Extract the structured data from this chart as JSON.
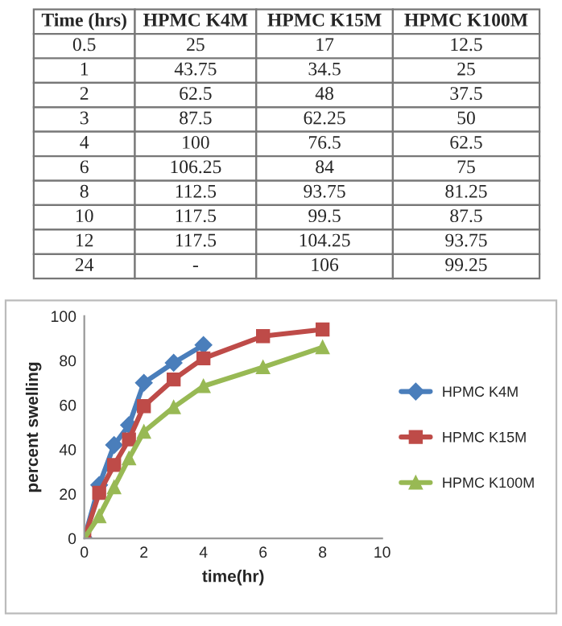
{
  "chart_data": [
    {
      "type": "other",
      "categories": [
        "Time (hrs)",
        "HPMC K4M",
        "HPMC K15M",
        "HPMC K100M"
      ],
      "cell_labels": [
        [
          "0.5",
          "25",
          "17",
          "12.5"
        ],
        [
          "1",
          "43.75",
          "34.5",
          "25"
        ],
        [
          "2",
          "62.5",
          "48",
          "37.5"
        ],
        [
          "3",
          "87.5",
          "62.25",
          "50"
        ],
        [
          "4",
          "100",
          "76.5",
          "62.5"
        ],
        [
          "6",
          "106.25",
          "84",
          "75"
        ],
        [
          "8",
          "112.5",
          "93.75",
          "81.25"
        ],
        [
          "10",
          "117.5",
          "99.5",
          "87.5"
        ],
        [
          "12",
          "117.5",
          "104.25",
          "93.75"
        ],
        [
          "24",
          "-",
          "106",
          "99.25"
        ]
      ]
    },
    {
      "type": "line",
      "xlabel": "time(hr)",
      "ylabel": "percent swelling",
      "xlim": [
        0,
        10
      ],
      "xticks": [
        0,
        2,
        4,
        6,
        8,
        10
      ],
      "ylim": [
        0,
        100
      ],
      "yticks": [
        0,
        20,
        40,
        60,
        80,
        100
      ],
      "grid": false,
      "legend": "right",
      "x": [
        0,
        0.5,
        1,
        1.5,
        2,
        3,
        4,
        6,
        8
      ],
      "series": [
        {
          "name": "HPMC K4M",
          "color": "#4a7ebb",
          "marker": "diamond",
          "values": [
            0,
            24,
            42,
            51,
            70,
            79,
            87,
            null,
            null
          ]
        },
        {
          "name": "HPMC K15M",
          "color": "#be4b48",
          "marker": "square",
          "values": [
            0,
            20.5,
            33,
            44.5,
            59.5,
            71.5,
            81,
            91,
            94
          ]
        },
        {
          "name": "HPMC K100M",
          "color": "#98b954",
          "marker": "triangle",
          "values": [
            0,
            10,
            23,
            36,
            48,
            59,
            68.5,
            77,
            86
          ]
        }
      ]
    }
  ]
}
